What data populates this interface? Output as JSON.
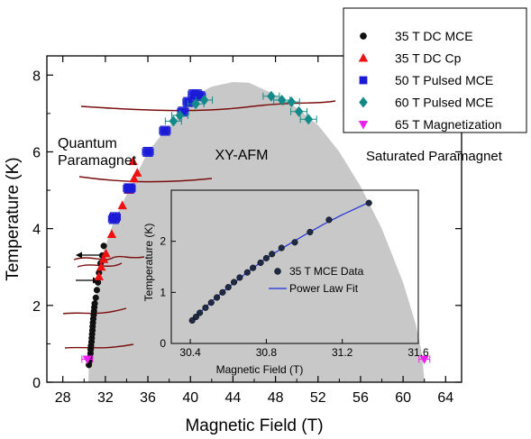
{
  "chart_data": [
    {
      "type": "scatter",
      "xlabel": "Magnetic Field (T)",
      "ylabel": "Temperature (K)",
      "xlim": [
        26.5,
        65.5
      ],
      "ylim": [
        0,
        8.5
      ],
      "xticks": [
        28,
        32,
        36,
        40,
        44,
        48,
        52,
        56,
        60,
        64
      ],
      "yticks": [
        0,
        2,
        4,
        6,
        8
      ],
      "region_labels": {
        "afm": "XY-AFM",
        "qp_line1": "Quantum",
        "qp_line2": "Paramagnet",
        "sat": "Saturated Paramagnet"
      },
      "phase_boundary_color": "#c8c8c8",
      "series": [
        {
          "name": "35 T DC MCE",
          "marker": "circle",
          "color": "#111111",
          "points": [
            [
              30.45,
              0.45
            ],
            [
              30.5,
              0.55
            ],
            [
              30.55,
              0.65
            ],
            [
              30.6,
              0.75
            ],
            [
              30.62,
              0.85
            ],
            [
              30.65,
              0.95
            ],
            [
              30.7,
              1.05
            ],
            [
              30.72,
              1.15
            ],
            [
              30.75,
              1.25
            ],
            [
              30.78,
              1.35
            ],
            [
              30.8,
              1.45
            ],
            [
              30.83,
              1.55
            ],
            [
              30.86,
              1.65
            ],
            [
              30.9,
              1.75
            ],
            [
              30.93,
              1.85
            ],
            [
              30.96,
              1.95
            ],
            [
              31.0,
              2.05
            ],
            [
              31.1,
              2.2
            ],
            [
              31.2,
              2.4
            ],
            [
              31.3,
              2.6
            ],
            [
              31.4,
              2.85
            ],
            [
              31.55,
              3.1
            ],
            [
              31.7,
              3.3
            ],
            [
              31.85,
              3.55
            ]
          ]
        },
        {
          "name": "35 T DC Cp",
          "marker": "triangle-up",
          "color": "#ee1111",
          "points": [
            [
              31.4,
              2.75
            ],
            [
              31.6,
              3.0
            ],
            [
              31.85,
              3.2
            ],
            [
              32.05,
              3.35
            ],
            [
              32.6,
              3.85
            ],
            [
              33.0,
              4.3
            ],
            [
              33.6,
              4.6
            ],
            [
              34.2,
              5.0
            ],
            [
              34.7,
              5.3
            ],
            [
              35.0,
              5.45
            ],
            [
              34.6,
              5.75
            ]
          ]
        },
        {
          "name": "50 T Pulsed MCE",
          "marker": "square",
          "color": "#1a1ad8",
          "points": [
            [
              32.8,
              4.25
            ],
            [
              32.9,
              4.3
            ],
            [
              34.2,
              5.05
            ],
            [
              34.3,
              5.05
            ],
            [
              36.0,
              6.0
            ],
            [
              37.6,
              6.55
            ],
            [
              39.3,
              7.05
            ],
            [
              39.8,
              7.3
            ],
            [
              40.3,
              7.5
            ],
            [
              40.6,
              7.5
            ],
            [
              40.9,
              7.45
            ]
          ]
        },
        {
          "name": "60 T Pulsed MCE",
          "marker": "diamond",
          "color": "#138a8a",
          "points": [
            [
              38.4,
              6.8
            ],
            [
              39.0,
              6.95
            ],
            [
              40.5,
              7.25
            ],
            [
              41.3,
              7.35
            ],
            [
              47.6,
              7.45
            ],
            [
              48.6,
              7.35
            ],
            [
              49.5,
              7.3
            ],
            [
              50.2,
              7.05
            ],
            [
              51.1,
              6.85
            ]
          ]
        },
        {
          "name": "65 T Magnetization",
          "marker": "triangle-down",
          "color": "#ee22ee",
          "points": [
            [
              30.3,
              0.6
            ],
            [
              62.0,
              0.6
            ]
          ]
        }
      ],
      "phase_boundary": [
        [
          30.4,
          0.0
        ],
        [
          30.45,
          0.45
        ],
        [
          30.6,
          0.8
        ],
        [
          30.85,
          1.6
        ],
        [
          31.2,
          2.4
        ],
        [
          31.7,
          3.3
        ],
        [
          32.8,
          4.2
        ],
        [
          34.2,
          5.0
        ],
        [
          36.0,
          6.0
        ],
        [
          37.6,
          6.55
        ],
        [
          39.3,
          7.05
        ],
        [
          40.6,
          7.5
        ],
        [
          42.0,
          7.7
        ],
        [
          44.0,
          7.82
        ],
        [
          45.5,
          7.8
        ],
        [
          47.5,
          7.55
        ],
        [
          50.0,
          7.15
        ],
        [
          52.0,
          6.7
        ],
        [
          54.0,
          6.0
        ],
        [
          56.0,
          5.1
        ],
        [
          58.0,
          4.0
        ],
        [
          60.0,
          2.6
        ],
        [
          61.2,
          1.5
        ],
        [
          61.8,
          0.7
        ],
        [
          62.0,
          0.0
        ]
      ]
    },
    {
      "type": "scatter",
      "xlabel": "Magnetic Field (T)",
      "ylabel": "Temperature (K)",
      "xlim": [
        30.3,
        31.6
      ],
      "ylim": [
        0,
        3
      ],
      "xticks": [
        30.4,
        30.8,
        31.2,
        31.6
      ],
      "yticks": [
        0,
        1,
        2
      ],
      "series": [
        {
          "name": "35 T MCE Data",
          "marker": "circle",
          "color": "#1f2a44",
          "points": [
            [
              30.41,
              0.45
            ],
            [
              30.43,
              0.52
            ],
            [
              30.45,
              0.6
            ],
            [
              30.48,
              0.7
            ],
            [
              30.51,
              0.8
            ],
            [
              30.54,
              0.9
            ],
            [
              30.57,
              1.0
            ],
            [
              30.6,
              1.1
            ],
            [
              30.63,
              1.2
            ],
            [
              30.66,
              1.29
            ],
            [
              30.7,
              1.39
            ],
            [
              30.73,
              1.48
            ],
            [
              30.77,
              1.58
            ],
            [
              30.8,
              1.67
            ],
            [
              30.83,
              1.75
            ],
            [
              30.88,
              1.87
            ],
            [
              30.95,
              1.98
            ],
            [
              31.03,
              2.18
            ],
            [
              31.13,
              2.42
            ],
            [
              31.34,
              2.75
            ]
          ]
        },
        {
          "name": "Power Law Fit",
          "marker": "line",
          "color": "#1f2fdd",
          "points": [
            [
              30.4,
              0.42
            ],
            [
              30.45,
              0.6
            ],
            [
              30.5,
              0.78
            ],
            [
              30.6,
              1.1
            ],
            [
              30.7,
              1.39
            ],
            [
              30.8,
              1.67
            ],
            [
              30.9,
              1.9
            ],
            [
              31.0,
              2.12
            ],
            [
              31.1,
              2.33
            ],
            [
              31.2,
              2.52
            ],
            [
              31.34,
              2.76
            ]
          ]
        }
      ]
    }
  ]
}
